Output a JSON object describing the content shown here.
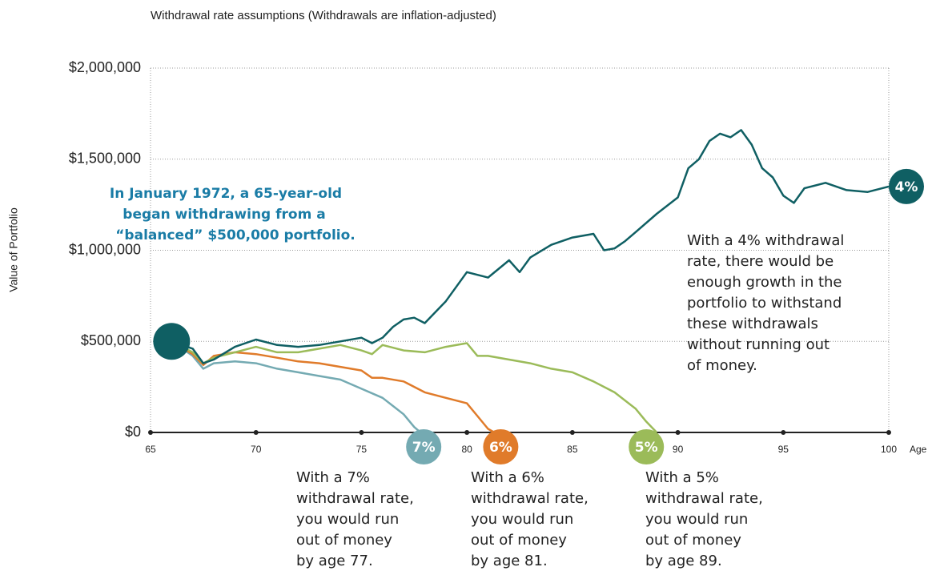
{
  "chart_data": {
    "type": "line",
    "title": "Withdrawal rate assumptions (Withdrawals are inflation-adjusted)",
    "y_label": "Value of Portfolio",
    "x_label": "Age",
    "xlim": [
      65,
      100
    ],
    "xticks": [
      65,
      70,
      75,
      80,
      85,
      90,
      95,
      100
    ],
    "ylim": [
      0,
      2000000
    ],
    "yticks": [
      {
        "value": 0,
        "label": "$0"
      },
      {
        "value": 500000,
        "label": "$500,000"
      },
      {
        "value": 1000000,
        "label": "$1,000,000"
      },
      {
        "value": 1500000,
        "label": "$1,500,000"
      },
      {
        "value": 2000000,
        "label": "$2,000,000"
      }
    ],
    "grid": true,
    "series": [
      {
        "name": "4%",
        "color": "#0f5f63",
        "x": [
          66,
          67,
          67.5,
          68,
          69,
          70,
          71,
          72,
          73,
          74,
          75,
          75.5,
          76,
          76.5,
          77,
          77.5,
          78,
          79,
          80,
          81,
          82,
          82.5,
          83,
          84,
          85,
          86,
          86.5,
          87,
          87.5,
          88,
          89,
          90,
          90.5,
          91,
          91.5,
          92,
          92.5,
          93,
          93.5,
          94,
          94.5,
          95,
          95.5,
          96,
          97,
          98,
          99,
          100
        ],
        "values": [
          500000,
          460000,
          380000,
          400000,
          470000,
          510000,
          480000,
          470000,
          480000,
          500000,
          520000,
          490000,
          520000,
          580000,
          620000,
          630000,
          600000,
          720000,
          880000,
          850000,
          945000,
          880000,
          960000,
          1030000,
          1070000,
          1090000,
          1000000,
          1010000,
          1050000,
          1100000,
          1200000,
          1290000,
          1450000,
          1500000,
          1600000,
          1640000,
          1620000,
          1660000,
          1580000,
          1450000,
          1400000,
          1300000,
          1260000,
          1340000,
          1370000,
          1330000,
          1320000,
          1350000
        ]
      },
      {
        "name": "5%",
        "color": "#9bbb59",
        "x": [
          66,
          67,
          67.5,
          68,
          69,
          70,
          71,
          72,
          73,
          74,
          75,
          75.5,
          76,
          77,
          78,
          79,
          80,
          80.5,
          81,
          82,
          83,
          84,
          85,
          86,
          87,
          88,
          88.5,
          89
        ],
        "values": [
          500000,
          440000,
          380000,
          410000,
          440000,
          470000,
          440000,
          440000,
          460000,
          480000,
          450000,
          430000,
          480000,
          450000,
          440000,
          470000,
          490000,
          420000,
          420000,
          400000,
          380000,
          350000,
          330000,
          280000,
          220000,
          130000,
          60000,
          0
        ]
      },
      {
        "name": "6%",
        "color": "#e07b2a",
        "x": [
          66,
          67,
          67.5,
          68,
          69,
          70,
          71,
          72,
          73,
          74,
          75,
          75.5,
          76,
          77,
          78,
          79,
          80,
          80.5,
          81,
          81.3
        ],
        "values": [
          500000,
          430000,
          370000,
          420000,
          440000,
          430000,
          410000,
          390000,
          380000,
          360000,
          340000,
          300000,
          300000,
          280000,
          220000,
          190000,
          160000,
          90000,
          20000,
          0
        ]
      },
      {
        "name": "7%",
        "color": "#74aab2",
        "x": [
          66,
          67,
          67.5,
          68,
          69,
          70,
          71,
          72,
          73,
          74,
          75,
          76,
          77,
          77.5,
          77.8
        ],
        "values": [
          500000,
          420000,
          350000,
          380000,
          390000,
          380000,
          350000,
          330000,
          310000,
          290000,
          240000,
          190000,
          100000,
          30000,
          0
        ]
      }
    ],
    "annotations": [
      [
        "In January 1972, a 65-year-old",
        "began withdrawing from a",
        "“balanced” $500,000 portfolio."
      ],
      [
        "With a 4% withdrawal",
        "rate, there would be",
        "enough growth in the",
        "portfolio to withstand",
        "these withdrawals",
        "without running out",
        "of money."
      ],
      [
        "With a 7%",
        "withdrawal rate,",
        "you would run",
        "out of money",
        "by age 77."
      ],
      [
        "With a 6%",
        "withdrawal rate,",
        "you would run",
        "out of money",
        "by age 81."
      ],
      [
        "With a 5%",
        "withdrawal rate,",
        "you would run",
        "out of money",
        "by age 89."
      ]
    ]
  }
}
